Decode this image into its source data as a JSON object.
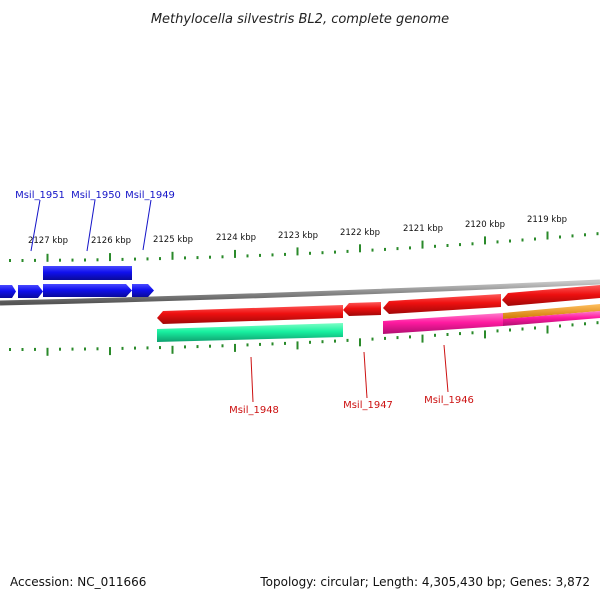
{
  "title": "Methylocella silvestris BL2, complete genome",
  "footer": {
    "accession": "Accession: NC_011666",
    "summary": "Topology: circular; Length: 4,305,430 bp; Genes: 3,872"
  },
  "colors": {
    "forward_gene": "#1010ee",
    "reverse_gene": "#ee1010",
    "reverse_gene_alt": "#ff1aa0",
    "reverse_gene_green": "#18f0a0",
    "reverse_gene_orange": "#ff9900",
    "backbone": "#8a8a8a",
    "ticks": "#2a8a2a",
    "forward_label": "#1515c8",
    "reverse_label": "#cc1111"
  },
  "upper_scale": [
    "2127 kbp",
    "2126 kbp",
    "2125 kbp",
    "2124 kbp",
    "2123 kbp",
    "2122 kbp",
    "2121 kbp",
    "2120 kbp",
    "2119 kbp"
  ],
  "forward_genes": [
    {
      "name": "Msil_1951"
    },
    {
      "name": "Msil_1950"
    },
    {
      "name": "Msil_1949"
    }
  ],
  "reverse_genes": [
    {
      "name": "Msil_1948"
    },
    {
      "name": "Msil_1947"
    },
    {
      "name": "Msil_1946"
    }
  ]
}
